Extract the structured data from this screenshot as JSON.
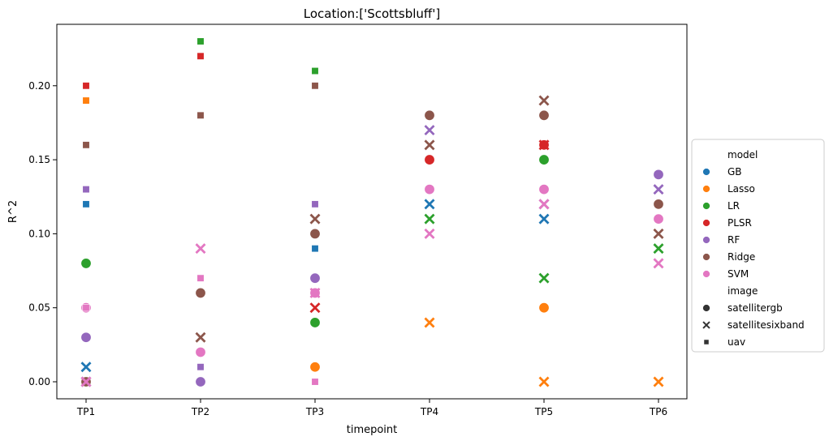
{
  "chart_data": {
    "type": "scatter",
    "title": "Location:['Scottsbluff']",
    "xlabel": "timepoint",
    "ylabel": "R^2",
    "categories": [
      "TP1",
      "TP2",
      "TP3",
      "TP4",
      "TP5",
      "TP6"
    ],
    "ylim": [
      -0.0115,
      0.2415
    ],
    "yticks": [
      0.0,
      0.05,
      0.1,
      0.15,
      0.2
    ],
    "ytick_labels": [
      "0.00",
      "0.05",
      "0.10",
      "0.15",
      "0.20"
    ],
    "grid": false,
    "legend_position": "right",
    "hue_title": "model",
    "style_title": "image",
    "models": [
      {
        "name": "GB",
        "color": "#1f77b4"
      },
      {
        "name": "Lasso",
        "color": "#ff7f0e"
      },
      {
        "name": "LR",
        "color": "#2ca02c"
      },
      {
        "name": "PLSR",
        "color": "#d62728"
      },
      {
        "name": "RF",
        "color": "#9467bd"
      },
      {
        "name": "Ridge",
        "color": "#8c564b"
      },
      {
        "name": "SVM",
        "color": "#e377c2"
      }
    ],
    "images": [
      {
        "name": "satellitergb",
        "marker": "circle"
      },
      {
        "name": "satellitesixband",
        "marker": "x"
      },
      {
        "name": "uav",
        "marker": "square"
      }
    ],
    "points": [
      {
        "x": "TP1",
        "y": 0.0,
        "model": "GB",
        "image": "satellitergb"
      },
      {
        "x": "TP1",
        "y": 0.0,
        "model": "Lasso",
        "image": "satellitergb"
      },
      {
        "x": "TP1",
        "y": 0.08,
        "model": "LR",
        "image": "satellitergb"
      },
      {
        "x": "TP1",
        "y": 0.0,
        "model": "PLSR",
        "image": "satellitergb"
      },
      {
        "x": "TP1",
        "y": 0.03,
        "model": "RF",
        "image": "satellitergb"
      },
      {
        "x": "TP1",
        "y": 0.0,
        "model": "Ridge",
        "image": "satellitergb"
      },
      {
        "x": "TP1",
        "y": 0.05,
        "model": "SVM",
        "image": "satellitergb"
      },
      {
        "x": "TP1",
        "y": 0.01,
        "model": "GB",
        "image": "satellitesixband"
      },
      {
        "x": "TP1",
        "y": 0.0,
        "model": "RF",
        "image": "satellitesixband"
      },
      {
        "x": "TP1",
        "y": 0.0,
        "model": "SVM",
        "image": "satellitesixband"
      },
      {
        "x": "TP1",
        "y": 0.12,
        "model": "GB",
        "image": "uav"
      },
      {
        "x": "TP1",
        "y": 0.19,
        "model": "Lasso",
        "image": "uav"
      },
      {
        "x": "TP1",
        "y": 0.2,
        "model": "PLSR",
        "image": "uav"
      },
      {
        "x": "TP1",
        "y": 0.13,
        "model": "RF",
        "image": "uav"
      },
      {
        "x": "TP1",
        "y": 0.16,
        "model": "Ridge",
        "image": "uav"
      },
      {
        "x": "TP1",
        "y": 0.05,
        "model": "SVM",
        "image": "uav"
      },
      {
        "x": "TP2",
        "y": 0.0,
        "model": "RF",
        "image": "satellitergb"
      },
      {
        "x": "TP2",
        "y": 0.06,
        "model": "Ridge",
        "image": "satellitergb"
      },
      {
        "x": "TP2",
        "y": 0.02,
        "model": "SVM",
        "image": "satellitergb"
      },
      {
        "x": "TP2",
        "y": 0.03,
        "model": "Ridge",
        "image": "satellitesixband"
      },
      {
        "x": "TP2",
        "y": 0.09,
        "model": "SVM",
        "image": "satellitesixband"
      },
      {
        "x": "TP2",
        "y": 0.23,
        "model": "LR",
        "image": "uav"
      },
      {
        "x": "TP2",
        "y": 0.22,
        "model": "PLSR",
        "image": "uav"
      },
      {
        "x": "TP2",
        "y": 0.18,
        "model": "Ridge",
        "image": "uav"
      },
      {
        "x": "TP2",
        "y": 0.01,
        "model": "RF",
        "image": "uav"
      },
      {
        "x": "TP2",
        "y": 0.07,
        "model": "SVM",
        "image": "uav"
      },
      {
        "x": "TP3",
        "y": 0.01,
        "model": "Lasso",
        "image": "satellitergb"
      },
      {
        "x": "TP3",
        "y": 0.04,
        "model": "LR",
        "image": "satellitergb"
      },
      {
        "x": "TP3",
        "y": 0.07,
        "model": "RF",
        "image": "satellitergb"
      },
      {
        "x": "TP3",
        "y": 0.1,
        "model": "Ridge",
        "image": "satellitergb"
      },
      {
        "x": "TP3",
        "y": 0.06,
        "model": "SVM",
        "image": "satellitergb"
      },
      {
        "x": "TP3",
        "y": 0.05,
        "model": "PLSR",
        "image": "satellitesixband"
      },
      {
        "x": "TP3",
        "y": 0.11,
        "model": "Ridge",
        "image": "satellitesixband"
      },
      {
        "x": "TP3",
        "y": 0.06,
        "model": "SVM",
        "image": "satellitesixband"
      },
      {
        "x": "TP3",
        "y": 0.09,
        "model": "GB",
        "image": "uav"
      },
      {
        "x": "TP3",
        "y": 0.21,
        "model": "LR",
        "image": "uav"
      },
      {
        "x": "TP3",
        "y": 0.2,
        "model": "Ridge",
        "image": "uav"
      },
      {
        "x": "TP3",
        "y": 0.12,
        "model": "RF",
        "image": "uav"
      },
      {
        "x": "TP3",
        "y": 0.0,
        "model": "SVM",
        "image": "uav"
      },
      {
        "x": "TP4",
        "y": 0.15,
        "model": "PLSR",
        "image": "satellitergb"
      },
      {
        "x": "TP4",
        "y": 0.18,
        "model": "Ridge",
        "image": "satellitergb"
      },
      {
        "x": "TP4",
        "y": 0.13,
        "model": "SVM",
        "image": "satellitergb"
      },
      {
        "x": "TP4",
        "y": 0.12,
        "model": "GB",
        "image": "satellitesixband"
      },
      {
        "x": "TP4",
        "y": 0.04,
        "model": "Lasso",
        "image": "satellitesixband"
      },
      {
        "x": "TP4",
        "y": 0.11,
        "model": "LR",
        "image": "satellitesixband"
      },
      {
        "x": "TP4",
        "y": 0.17,
        "model": "RF",
        "image": "satellitesixband"
      },
      {
        "x": "TP4",
        "y": 0.16,
        "model": "Ridge",
        "image": "satellitesixband"
      },
      {
        "x": "TP4",
        "y": 0.1,
        "model": "SVM",
        "image": "satellitesixband"
      },
      {
        "x": "TP5",
        "y": 0.05,
        "model": "Lasso",
        "image": "satellitergb"
      },
      {
        "x": "TP5",
        "y": 0.15,
        "model": "LR",
        "image": "satellitergb"
      },
      {
        "x": "TP5",
        "y": 0.16,
        "model": "PLSR",
        "image": "satellitergb"
      },
      {
        "x": "TP5",
        "y": 0.18,
        "model": "Ridge",
        "image": "satellitergb"
      },
      {
        "x": "TP5",
        "y": 0.13,
        "model": "SVM",
        "image": "satellitergb"
      },
      {
        "x": "TP5",
        "y": 0.11,
        "model": "GB",
        "image": "satellitesixband"
      },
      {
        "x": "TP5",
        "y": 0.0,
        "model": "Lasso",
        "image": "satellitesixband"
      },
      {
        "x": "TP5",
        "y": 0.07,
        "model": "LR",
        "image": "satellitesixband"
      },
      {
        "x": "TP5",
        "y": 0.16,
        "model": "PLSR",
        "image": "satellitesixband"
      },
      {
        "x": "TP5",
        "y": 0.12,
        "model": "RF",
        "image": "satellitesixband"
      },
      {
        "x": "TP5",
        "y": 0.19,
        "model": "Ridge",
        "image": "satellitesixband"
      },
      {
        "x": "TP5",
        "y": 0.12,
        "model": "SVM",
        "image": "satellitesixband"
      },
      {
        "x": "TP6",
        "y": 0.14,
        "model": "RF",
        "image": "satellitergb"
      },
      {
        "x": "TP6",
        "y": 0.12,
        "model": "Ridge",
        "image": "satellitergb"
      },
      {
        "x": "TP6",
        "y": 0.11,
        "model": "SVM",
        "image": "satellitergb"
      },
      {
        "x": "TP6",
        "y": 0.0,
        "model": "Lasso",
        "image": "satellitesixband"
      },
      {
        "x": "TP6",
        "y": 0.09,
        "model": "LR",
        "image": "satellitesixband"
      },
      {
        "x": "TP6",
        "y": 0.13,
        "model": "RF",
        "image": "satellitesixband"
      },
      {
        "x": "TP6",
        "y": 0.1,
        "model": "Ridge",
        "image": "satellitesixband"
      },
      {
        "x": "TP6",
        "y": 0.08,
        "model": "SVM",
        "image": "satellitesixband"
      }
    ]
  }
}
